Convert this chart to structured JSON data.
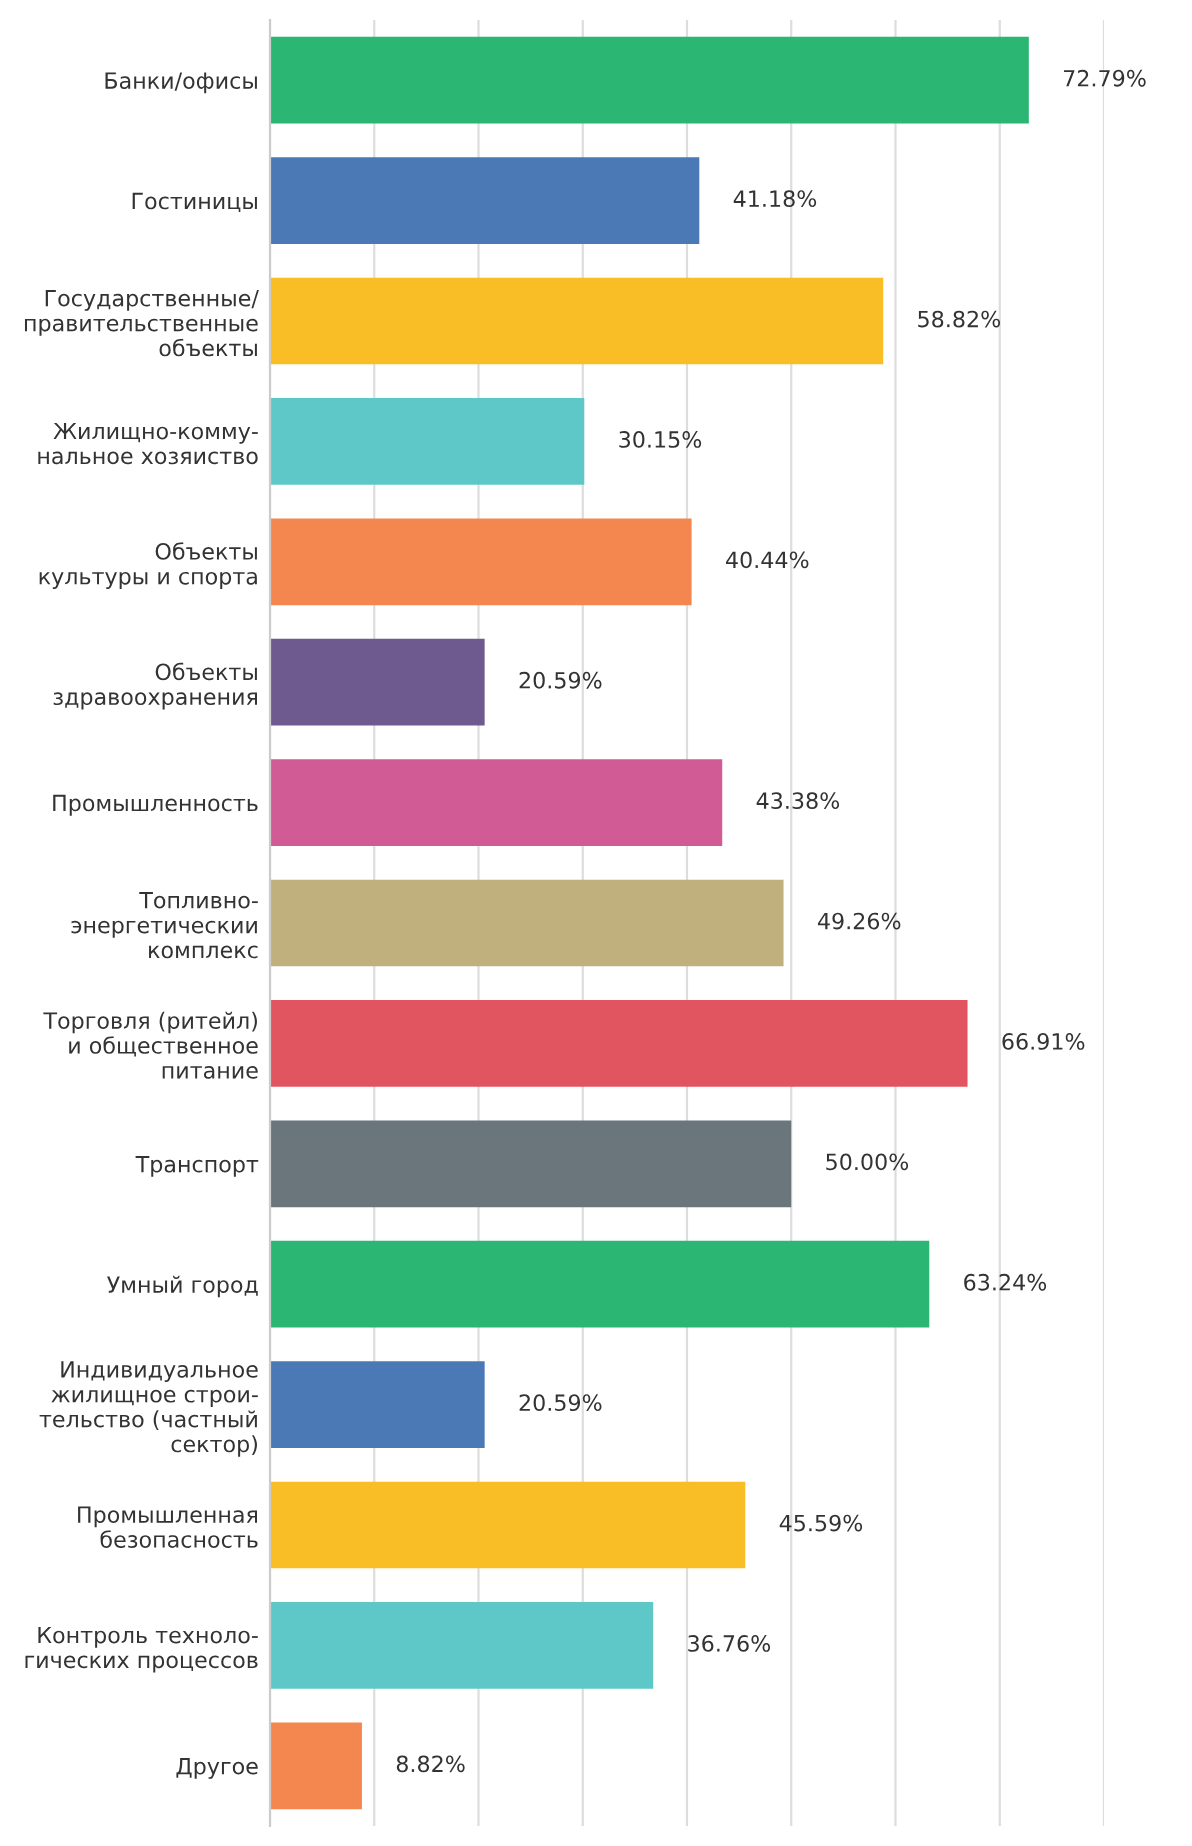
{
  "chart_data": {
    "type": "bar",
    "orientation": "horizontal",
    "categories": [
      "Банки/офисы",
      "Гостиницы",
      "Государственные/\nправительственные\nобъекты",
      "Жилищно-комму-\nнальное хозяиство",
      "Объекты\nкультуры и спорта",
      "Объекты\nздравоохранения",
      "Промышленность",
      "Топливно-\nэнергетическии\nкомплекс",
      "Торговля (ритейл)\nи общественное\nпитание",
      "Транспорт",
      "Умный город",
      "Индивидуальное\nжилищное строи-\nтельство (частный\nсектор)",
      "Промышленная\nбезопасность",
      "Контроль техноло-\nгических процессов",
      "Другое"
    ],
    "values": [
      72.79,
      41.18,
      58.82,
      30.15,
      40.44,
      20.59,
      43.38,
      49.26,
      66.91,
      50.0,
      63.24,
      20.59,
      45.59,
      36.76,
      8.82
    ],
    "value_labels": [
      "72.79%",
      "41.18%",
      "58.82%",
      "30.15%",
      "40.44%",
      "20.59%",
      "43.38%",
      "49.26%",
      "66.91%",
      "50.00%",
      "63.24%",
      "20.59%",
      "45.59%",
      "36.76%",
      "8.82%"
    ],
    "colors": [
      "#2bb673",
      "#4a79b5",
      "#f9bd26",
      "#5ec8c8",
      "#f4874f",
      "#6f5a8f",
      "#d15b94",
      "#bfb07e",
      "#e0555f",
      "#6b757c",
      "#2bb673",
      "#4a79b5",
      "#f9bd26",
      "#5ec8c8",
      "#f4874f"
    ],
    "xlim": [
      0,
      80
    ],
    "xticks": [
      {
        "value": 0,
        "label": null
      },
      {
        "value": 10,
        "label": null
      },
      {
        "value": 20,
        "label": null
      },
      {
        "value": 30,
        "label": null
      },
      {
        "value": 40,
        "label": null
      },
      {
        "value": 50,
        "label": null
      },
      {
        "value": 60,
        "label": null
      },
      {
        "value": 70,
        "label": null
      },
      {
        "value": 80,
        "label": null
      }
    ],
    "grid": "x",
    "tick_labels": "y",
    "legend": false
  }
}
